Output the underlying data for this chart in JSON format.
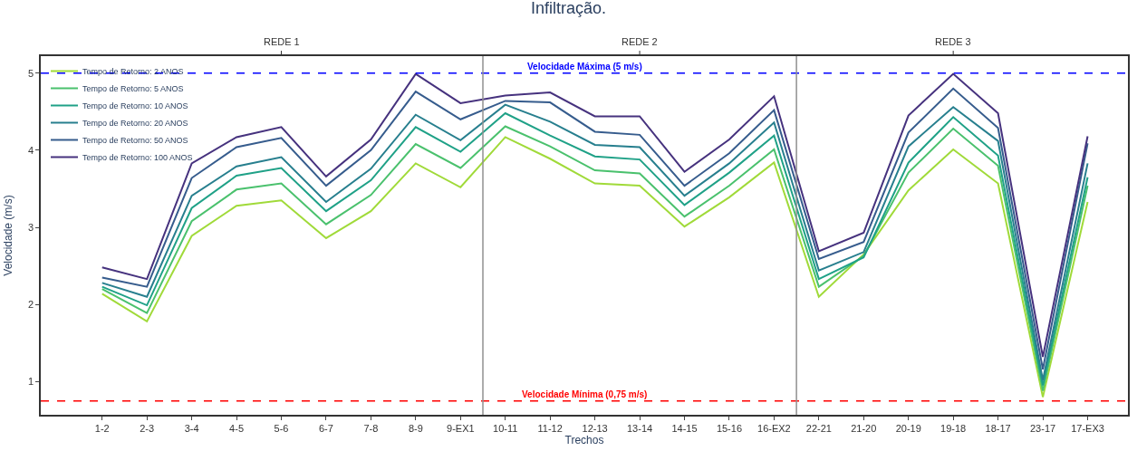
{
  "chart_data": {
    "type": "line",
    "title": "Infiltração.",
    "xlabel": "Trechos",
    "ylabel": "Velocidade (m/s)",
    "categories": [
      "1-2",
      "2-3",
      "3-4",
      "4-5",
      "5-6",
      "6-7",
      "7-8",
      "8-9",
      "9-EX1",
      "10-11",
      "11-12",
      "12-13",
      "13-14",
      "14-15",
      "15-16",
      "16-EX2",
      "22-21",
      "21-20",
      "20-19",
      "19-18",
      "18-17",
      "23-17",
      "17-EX3"
    ],
    "series": [
      {
        "name": "Tempo de Retorno: 2 ANOS",
        "color": "#a0da39",
        "values": [
          2.14,
          1.78,
          2.89,
          3.28,
          3.35,
          2.86,
          3.21,
          3.83,
          3.52,
          4.17,
          3.89,
          3.57,
          3.54,
          3.01,
          3.39,
          3.84,
          2.1,
          2.65,
          3.48,
          4.01,
          3.57,
          0.8,
          3.33
        ]
      },
      {
        "name": "Tempo de Retorno: 5 ANOS",
        "color": "#4ac16d",
        "values": [
          2.2,
          1.89,
          3.08,
          3.49,
          3.57,
          3.04,
          3.42,
          4.08,
          3.77,
          4.31,
          4.05,
          3.74,
          3.7,
          3.14,
          3.54,
          4.01,
          2.23,
          2.63,
          3.71,
          4.28,
          3.8,
          0.88,
          3.54
        ]
      },
      {
        "name": "Tempo de Retorno: 10 ANOS",
        "color": "#1fa187",
        "values": [
          2.23,
          1.99,
          3.25,
          3.67,
          3.77,
          3.21,
          3.61,
          4.3,
          3.98,
          4.48,
          4.19,
          3.92,
          3.88,
          3.29,
          3.71,
          4.19,
          2.33,
          2.61,
          3.84,
          4.43,
          3.93,
          0.95,
          3.65
        ]
      },
      {
        "name": "Tempo de Retorno: 20 ANOS",
        "color": "#277f8e",
        "values": [
          2.28,
          2.1,
          3.41,
          3.79,
          3.91,
          3.33,
          3.76,
          4.46,
          4.13,
          4.59,
          4.37,
          4.07,
          4.04,
          3.41,
          3.83,
          4.36,
          2.44,
          2.68,
          4.05,
          4.56,
          4.12,
          1.02,
          3.83
        ]
      },
      {
        "name": "Tempo de Retorno: 50 ANOS",
        "color": "#365c8d",
        "values": [
          2.35,
          2.23,
          3.64,
          4.04,
          4.16,
          3.54,
          4.0,
          4.76,
          4.4,
          4.64,
          4.62,
          4.24,
          4.2,
          3.54,
          3.96,
          4.52,
          2.59,
          2.81,
          4.23,
          4.8,
          4.29,
          1.16,
          4.09
        ]
      },
      {
        "name": "Tempo de Retorno: 100 ANOS",
        "color": "#46327e",
        "values": [
          2.48,
          2.33,
          3.83,
          4.17,
          4.3,
          3.66,
          4.14,
          4.99,
          4.61,
          4.71,
          4.75,
          4.44,
          4.44,
          3.72,
          4.14,
          4.7,
          2.69,
          2.93,
          4.45,
          4.99,
          4.48,
          1.32,
          4.18
        ]
      }
    ],
    "ylim": [
      0.57,
      5.22
    ],
    "yticks": [
      1,
      2,
      3,
      4,
      5
    ],
    "legend": "top left",
    "marker": "none",
    "line_style": "solid",
    "ref_lines": [
      {
        "axis": "y",
        "value": 5,
        "label": "Velocidade Máxima (5 m/s)",
        "color": "#0000ff",
        "line_style": "dashed"
      },
      {
        "axis": "y",
        "value": 0.75,
        "label": "Velocidade Mínima (0,75 m/s)",
        "color": "#ff0000",
        "line_style": "dashed"
      }
    ],
    "annotations": [
      {
        "text": "REDE 1",
        "x": "5-6"
      },
      {
        "text": "REDE 2",
        "x": "13-14"
      },
      {
        "text": "REDE 3",
        "x": "19-18"
      }
    ]
  }
}
